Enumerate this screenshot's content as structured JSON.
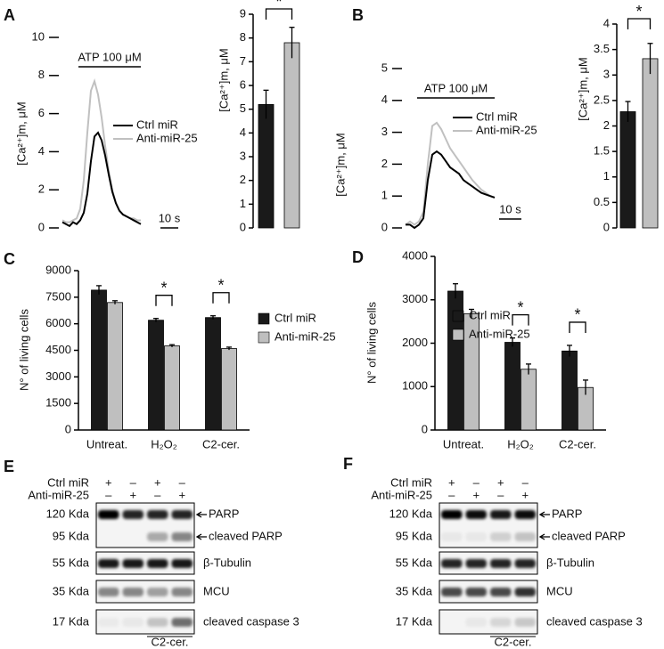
{
  "chart_data": [
    {
      "type": "line",
      "panel": "A",
      "ylabel": "[Ca²⁺]m, μM",
      "x": [
        0,
        2,
        4,
        6,
        8,
        10,
        12,
        14,
        16,
        18,
        20,
        22,
        24,
        26,
        28,
        30,
        32,
        34,
        36,
        38,
        40,
        42,
        44
      ],
      "xlim": [
        0,
        44
      ],
      "series": [
        {
          "name": "Ctrl miR",
          "color": "#000000",
          "values": [
            0.3,
            0.2,
            0.1,
            0.3,
            0.2,
            0.4,
            0.8,
            1.8,
            3.5,
            4.8,
            5.0,
            4.6,
            3.8,
            2.8,
            1.9,
            1.3,
            0.9,
            0.7,
            0.6,
            0.5,
            0.4,
            0.3,
            0.2
          ]
        },
        {
          "name": "Anti-miR-25",
          "color": "#c0c0c0",
          "values": [
            0.4,
            0.3,
            0.3,
            0.4,
            0.5,
            1.0,
            2.5,
            5.0,
            7.2,
            7.7,
            7.0,
            5.8,
            4.3,
            3.0,
            2.0,
            1.3,
            0.9,
            0.7,
            0.6,
            0.5,
            0.5,
            0.4,
            0.4
          ]
        }
      ],
      "ylim": [
        0,
        10
      ],
      "yticks": [
        0,
        2,
        4,
        6,
        8,
        10
      ],
      "annotation": "ATP 100 μM",
      "scale_bar": {
        "value": 10,
        "label": "10 s"
      }
    },
    {
      "type": "bar",
      "ylabel": "[Ca²⁺]m, μM",
      "categories": [
        null,
        null
      ],
      "values": [
        5.2,
        7.8
      ],
      "errors": [
        0.6,
        0.65
      ],
      "colors": [
        "#1a1a1a",
        "#bfbfbf"
      ],
      "ylim": [
        0,
        9
      ],
      "yticks": [
        0,
        1,
        2,
        3,
        4,
        5,
        6,
        7,
        8,
        9
      ],
      "significance": "*"
    },
    {
      "type": "line",
      "panel": "B",
      "ylabel": "[Ca²⁺]m, μM",
      "x": [
        0,
        2,
        4,
        6,
        8,
        10,
        12,
        14,
        16,
        18,
        20,
        22,
        24,
        26,
        28,
        30,
        32,
        34,
        36,
        38,
        40
      ],
      "xlim": [
        0,
        40
      ],
      "series": [
        {
          "name": "Ctrl miR",
          "color": "#000000",
          "values": [
            0.1,
            0.1,
            0,
            0.1,
            0.3,
            1.5,
            2.3,
            2.4,
            2.3,
            2.1,
            1.9,
            1.8,
            1.7,
            1.5,
            1.4,
            1.3,
            1.2,
            1.1,
            1.05,
            1.0,
            0.95
          ]
        },
        {
          "name": "Anti-miR-25",
          "color": "#c0c0c0",
          "values": [
            0.1,
            0.2,
            0.1,
            0.2,
            0.5,
            2.0,
            3.2,
            3.3,
            3.1,
            2.8,
            2.5,
            2.3,
            2.1,
            1.9,
            1.7,
            1.5,
            1.35,
            1.2,
            1.1,
            1.0,
            0.95
          ]
        }
      ],
      "ylim": [
        0,
        5
      ],
      "yticks": [
        0,
        1,
        2,
        3,
        4,
        5
      ],
      "annotation": "ATP 100 μM",
      "scale_bar": {
        "value": 10,
        "label": "10 s"
      }
    },
    {
      "type": "bar",
      "ylabel": "[Ca²⁺]m, μM",
      "categories": [
        null,
        null
      ],
      "values": [
        2.28,
        3.32
      ],
      "errors": [
        0.2,
        0.3
      ],
      "colors": [
        "#1a1a1a",
        "#bfbfbf"
      ],
      "ylim": [
        0,
        4
      ],
      "yticks": [
        0,
        0.5,
        1,
        1.5,
        2,
        2.5,
        3,
        3.5,
        4
      ],
      "significance": "*"
    },
    {
      "type": "bar",
      "panel": "C",
      "ylabel": "N° of living cells",
      "categories": [
        "Untreat.",
        "H₂O₂",
        "C2-cer."
      ],
      "series": [
        {
          "name": "Ctrl miR",
          "color": "#1a1a1a",
          "values": [
            7900,
            6200,
            6350
          ],
          "errors": [
            250,
            100,
            100
          ]
        },
        {
          "name": "Anti-miR-25",
          "color": "#bfbfbf",
          "values": [
            7200,
            4750,
            4600
          ],
          "errors": [
            100,
            70,
            80
          ]
        }
      ],
      "ylim": [
        0,
        9000
      ],
      "yticks": [
        0,
        1500,
        3000,
        4500,
        6000,
        7500,
        9000
      ],
      "significance": [
        null,
        "*",
        "*"
      ],
      "legend": "right"
    },
    {
      "type": "bar",
      "panel": "D",
      "ylabel": "N° of living cells",
      "categories": [
        "Untreat.",
        "H₂O₂",
        "C2-cer."
      ],
      "series": [
        {
          "name": "Ctrl miR",
          "color": "#1a1a1a",
          "values": [
            3200,
            2020,
            1820
          ],
          "errors": [
            170,
            100,
            130
          ]
        },
        {
          "name": "Anti-miR-25",
          "color": "#bfbfbf",
          "values": [
            2680,
            1400,
            980
          ],
          "errors": [
            100,
            120,
            170
          ]
        }
      ],
      "ylim": [
        0,
        4000
      ],
      "yticks": [
        0,
        1000,
        2000,
        3000,
        4000
      ],
      "significance": [
        null,
        "*",
        "*"
      ],
      "legend": "right"
    }
  ],
  "blots": [
    {
      "panel": "E",
      "treatments": [
        {
          "name": "Ctrl miR",
          "signs": [
            "+",
            "–",
            "+",
            "–"
          ]
        },
        {
          "name": "Anti-miR-25",
          "signs": [
            "–",
            "+",
            "–",
            "+"
          ]
        }
      ],
      "bands": [
        {
          "kda": "120 Kda",
          "label": "PARP"
        },
        {
          "kda": "95 Kda",
          "label": "cleaved PARP"
        },
        {
          "kda": "55 Kda",
          "label": "β-Tubulin"
        },
        {
          "kda": "35 Kda",
          "label": "MCU"
        },
        {
          "kda": "17 Kda",
          "label": "cleaved caspase 3"
        }
      ],
      "group_label": "C2-cer."
    },
    {
      "panel": "F",
      "treatments": [
        {
          "name": "Ctrl miR",
          "signs": [
            "+",
            "–",
            "+",
            "–"
          ]
        },
        {
          "name": "Anti-miR-25",
          "signs": [
            "–",
            "+",
            "–",
            "+"
          ]
        }
      ],
      "bands": [
        {
          "kda": "120 Kda",
          "label": "PARP"
        },
        {
          "kda": "95 Kda",
          "label": "cleaved PARP"
        },
        {
          "kda": "55 Kda",
          "label": "β-Tubulin"
        },
        {
          "kda": "35 Kda",
          "label": "MCU"
        },
        {
          "kda": "17 Kda",
          "label": "cleaved caspase 3"
        }
      ],
      "group_label": "C2-cer."
    }
  ]
}
